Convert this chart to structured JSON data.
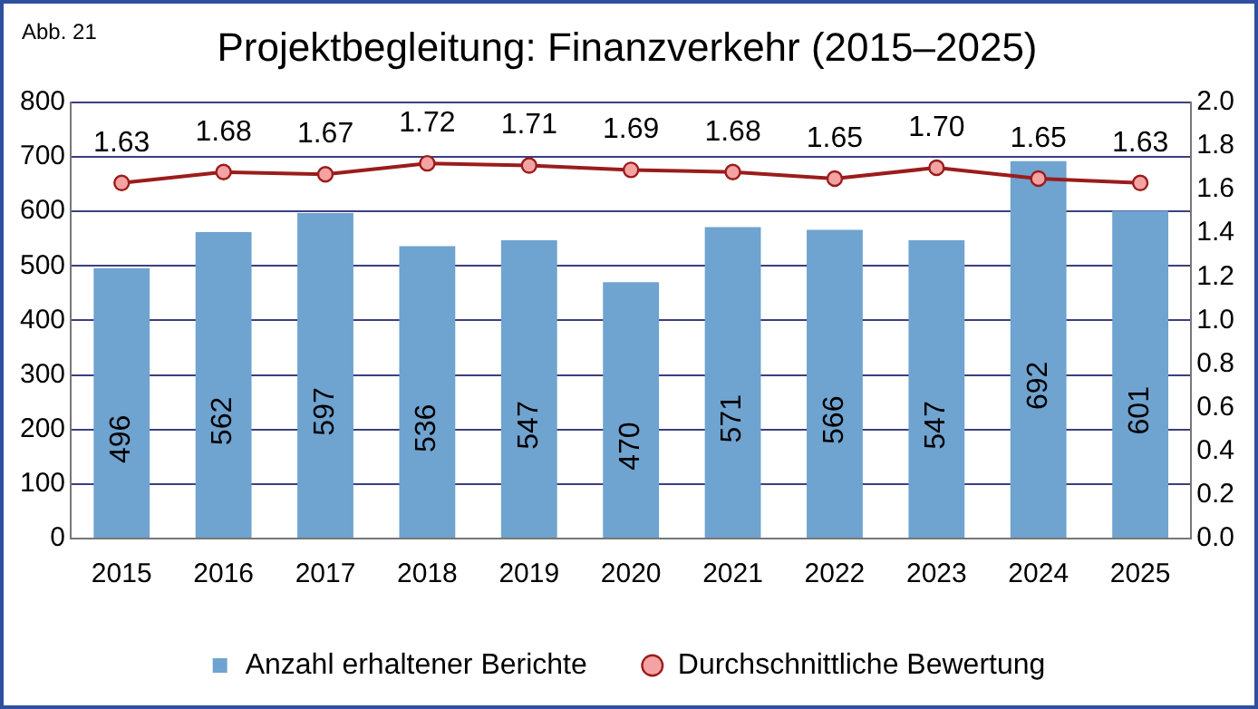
{
  "chart_data": {
    "type": "bar",
    "title": "Projektbegleitung: Finanzverkehr (2015–2025)",
    "annotations": [
      "Abb. 21"
    ],
    "categories": [
      "2015",
      "2016",
      "2017",
      "2018",
      "2019",
      "2020",
      "2021",
      "2022",
      "2023",
      "2024",
      "2025"
    ],
    "series": [
      {
        "name": "Anzahl erhaltener Berichte",
        "color": "#6fa3d0",
        "values": [
          496,
          562,
          597,
          536,
          547,
          470,
          571,
          566,
          547,
          692,
          601
        ]
      },
      {
        "name": "Durchschnittliche Bewertung",
        "type": "line",
        "axis": "y2",
        "color": "#9b1c1c",
        "marker": "circle",
        "values": [
          1.63,
          1.68,
          1.67,
          1.72,
          1.71,
          1.69,
          1.68,
          1.65,
          1.7,
          1.65,
          1.63
        ],
        "value_labels": [
          "1.63",
          "1.68",
          "1.67",
          "1.72",
          "1.71",
          "1.69",
          "1.68",
          "1.65",
          "1.70",
          "1.65",
          "1.63"
        ]
      }
    ],
    "ylim": [
      0,
      800
    ],
    "yticks": [
      0,
      100,
      200,
      300,
      400,
      500,
      600,
      700,
      800
    ],
    "y2lim": [
      0,
      2
    ],
    "y2ticks": [
      {
        "value": 0,
        "label": "0.0"
      },
      0.2,
      0.4,
      0.6,
      0.8,
      {
        "value": 1,
        "label": "1.0"
      },
      1.2,
      1.4,
      1.6,
      1.8,
      {
        "value": 2,
        "label": "2.0"
      }
    ],
    "grid": "y",
    "legend": "bottom",
    "data_labels": true
  }
}
